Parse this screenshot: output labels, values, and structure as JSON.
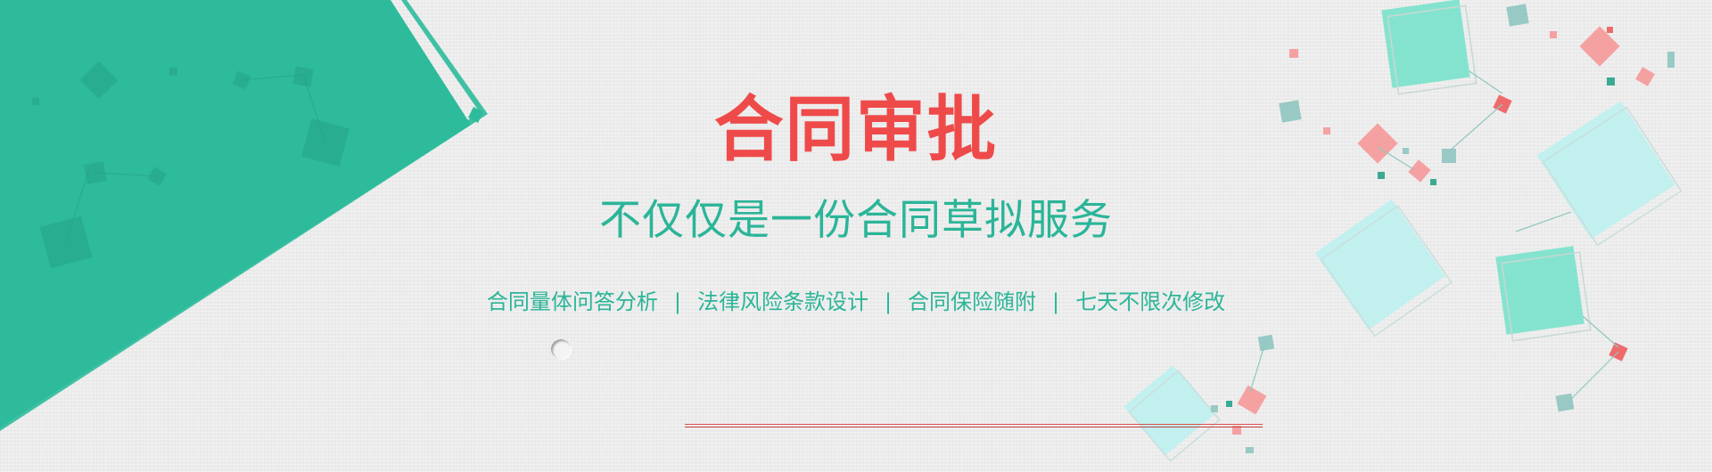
{
  "banner": {
    "title": "合同审批",
    "subtitle": "不仅仅是一份合同草拟服务",
    "features": [
      "合同量体问答分析",
      "法律风险条款设计",
      "合同保险随附",
      "七天不限次修改"
    ],
    "separator": "|"
  },
  "colors": {
    "accent_green": "#2bb598",
    "title_red": "#ef4a4a",
    "background": "#ececec",
    "tile_mint": "#7ee3cc",
    "tile_sky": "#bff0ef",
    "tile_pink": "#f5a1a1"
  }
}
